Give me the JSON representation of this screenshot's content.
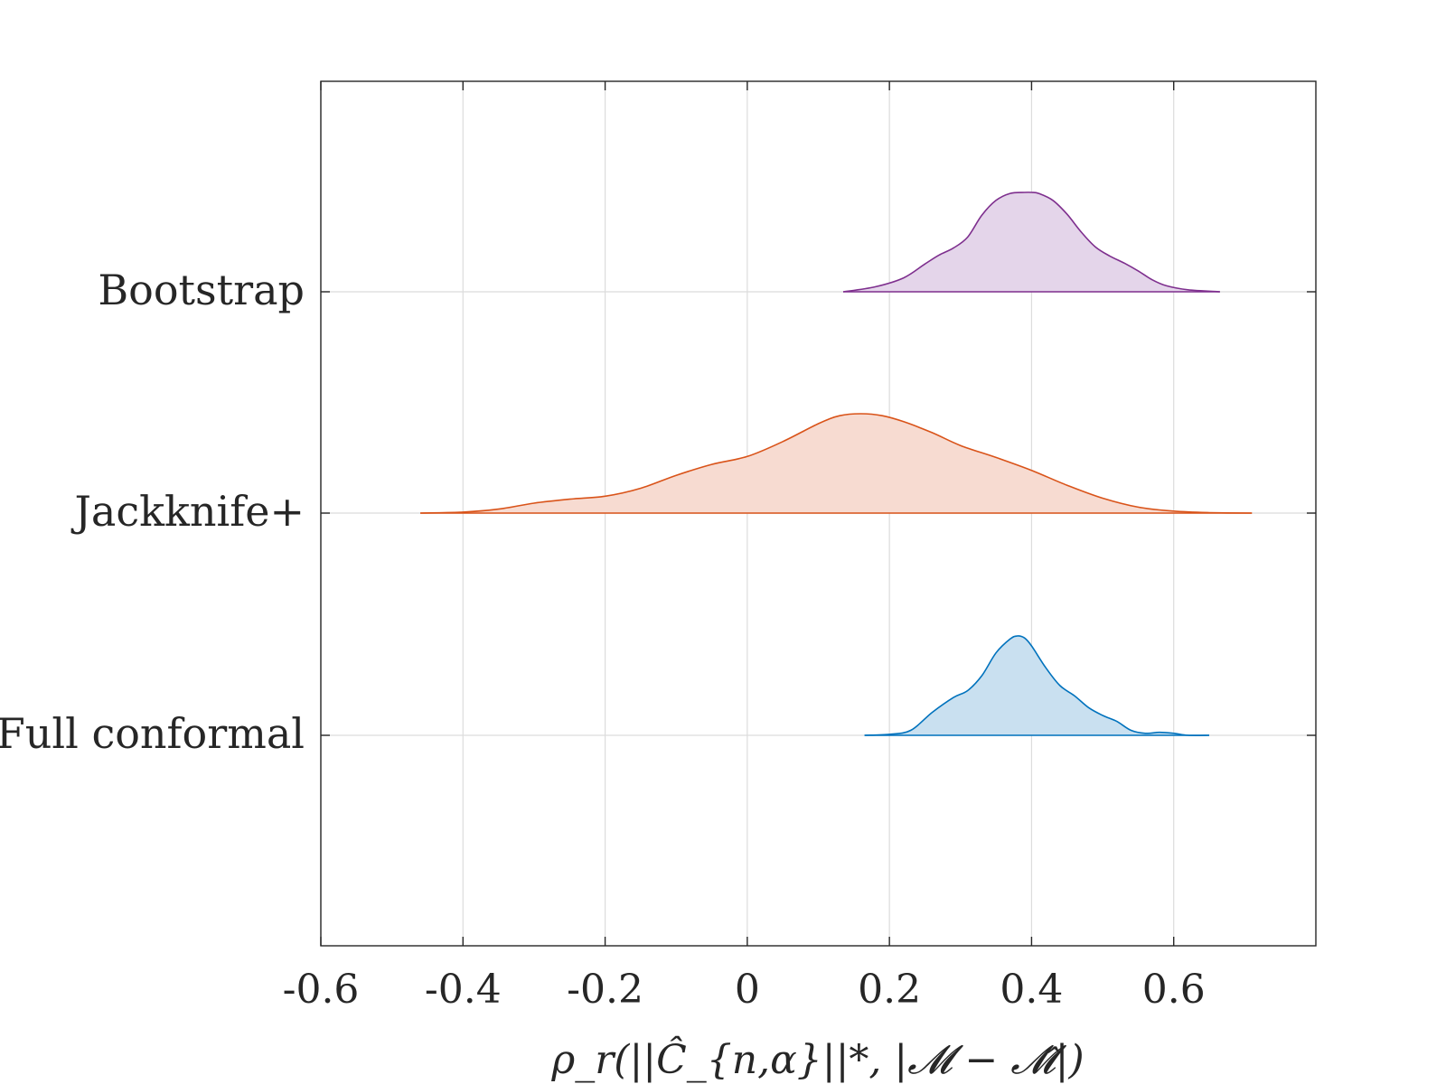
{
  "chart_data": {
    "type": "ridgeline",
    "title": "",
    "xlabel": "ρ_r(||Ĉ_{n,α}||*, |𝓜 − 𝓜̂|)",
    "ylabel": "",
    "xlim": [
      -0.6,
      0.8
    ],
    "xticks": [
      -0.6,
      -0.4,
      -0.2,
      0,
      0.2,
      0.4,
      0.6
    ],
    "xtick_labels": [
      "-0.6",
      "-0.4",
      "-0.2",
      "0",
      "0.2",
      "0.4",
      "0.6"
    ],
    "grid": true,
    "series": [
      {
        "name": "Bootstrap",
        "color": "#7E2F8E",
        "fill": "#E4D5EA",
        "x": [
          0.135,
          0.18,
          0.22,
          0.25,
          0.27,
          0.29,
          0.31,
          0.33,
          0.35,
          0.37,
          0.39,
          0.4,
          0.41,
          0.43,
          0.45,
          0.47,
          0.49,
          0.51,
          0.53,
          0.55,
          0.57,
          0.59,
          0.62,
          0.665
        ],
        "density": [
          0.0,
          0.05,
          0.14,
          0.28,
          0.37,
          0.44,
          0.55,
          0.77,
          0.92,
          0.99,
          1.0,
          1.0,
          0.99,
          0.92,
          0.78,
          0.6,
          0.45,
          0.36,
          0.29,
          0.21,
          0.12,
          0.06,
          0.02,
          0.0
        ]
      },
      {
        "name": "Jackknife+",
        "color": "#D95319",
        "fill": "#F7DBD1",
        "x": [
          -0.46,
          -0.4,
          -0.35,
          -0.3,
          -0.25,
          -0.2,
          -0.15,
          -0.1,
          -0.05,
          0.0,
          0.05,
          0.1,
          0.13,
          0.16,
          0.19,
          0.22,
          0.26,
          0.3,
          0.35,
          0.4,
          0.45,
          0.5,
          0.55,
          0.6,
          0.65,
          0.71
        ],
        "density": [
          0.0,
          0.01,
          0.04,
          0.1,
          0.14,
          0.17,
          0.25,
          0.38,
          0.49,
          0.57,
          0.72,
          0.9,
          0.98,
          1.0,
          0.98,
          0.92,
          0.81,
          0.68,
          0.56,
          0.43,
          0.28,
          0.15,
          0.06,
          0.02,
          0.005,
          0.0
        ]
      },
      {
        "name": "Full conformal",
        "color": "#0072BD",
        "fill": "#C9E0F0",
        "x": [
          0.165,
          0.2,
          0.23,
          0.26,
          0.29,
          0.31,
          0.33,
          0.35,
          0.37,
          0.38,
          0.39,
          0.4,
          0.42,
          0.44,
          0.46,
          0.48,
          0.5,
          0.52,
          0.54,
          0.56,
          0.58,
          0.6,
          0.62,
          0.65
        ],
        "density": [
          0.0,
          0.01,
          0.05,
          0.23,
          0.38,
          0.45,
          0.6,
          0.83,
          0.97,
          1.0,
          0.98,
          0.9,
          0.68,
          0.5,
          0.4,
          0.28,
          0.2,
          0.14,
          0.05,
          0.02,
          0.03,
          0.02,
          0.0,
          0.0
        ]
      }
    ]
  }
}
